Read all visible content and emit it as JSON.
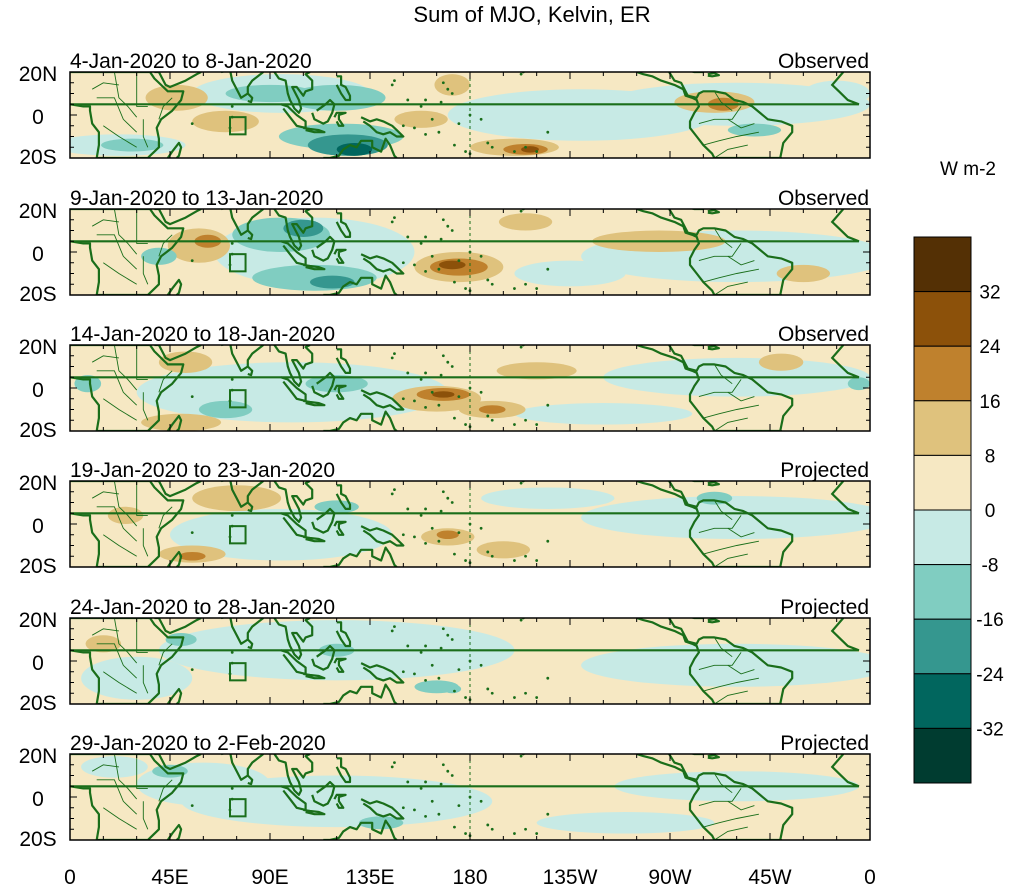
{
  "title": "Sum of MJO, Kelvin, ER",
  "colorbar": {
    "units": "W m-2",
    "tick_labels": [
      "32",
      "24",
      "16",
      "8",
      "0",
      "-8",
      "-16",
      "-24",
      "-32"
    ],
    "colors_top_to_bottom": [
      "#543005",
      "#8c510a",
      "#bf812d",
      "#dfc27d",
      "#f6e8c3",
      "#c7eae5",
      "#80cdc1",
      "#35978f",
      "#01665e",
      "#003c30"
    ]
  },
  "axes": {
    "y_labels": [
      "20N",
      "0",
      "20S"
    ],
    "x_labels": [
      "0",
      "45E",
      "90E",
      "135E",
      "180",
      "135W",
      "90W",
      "45W",
      "0"
    ]
  },
  "colors": {
    "coast": "#1a6e1a",
    "positive_light": "#f6e8c3",
    "negative_light": "#c7eae5"
  },
  "panels": [
    {
      "date_range": "4-Jan-2020 to 8-Jan-2020",
      "status": "Observed"
    },
    {
      "date_range": "9-Jan-2020 to 13-Jan-2020",
      "status": "Observed"
    },
    {
      "date_range": "14-Jan-2020 to 18-Jan-2020",
      "status": "Observed"
    },
    {
      "date_range": "19-Jan-2020 to 23-Jan-2020",
      "status": "Projected"
    },
    {
      "date_range": "24-Jan-2020 to 28-Jan-2020",
      "status": "Projected"
    },
    {
      "date_range": "29-Jan-2020 to 2-Feb-2020",
      "status": "Projected"
    }
  ]
}
